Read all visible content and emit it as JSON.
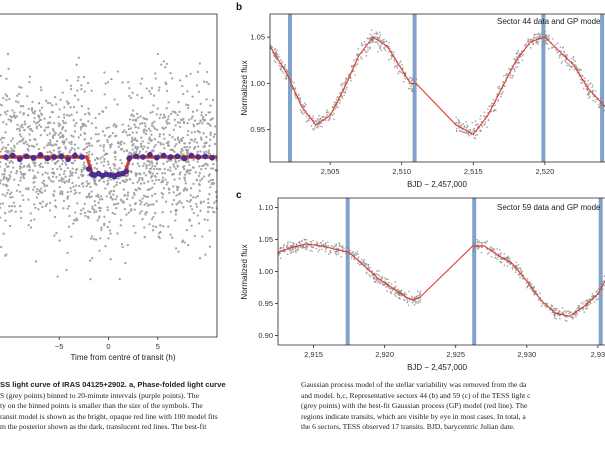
{
  "panel_a": {
    "xlabel": "Time from centre of transit (h)",
    "xticks": [
      "−5",
      "0",
      "5"
    ]
  },
  "panel_b": {
    "letter": "b",
    "title": "Sector 44 data and GP mode",
    "ylabel": "Normalized flux",
    "xlabel": "BJD − 2,457,000",
    "yticks": [
      "1.05",
      "1.00",
      "0.95"
    ],
    "xticks": [
      "2,505",
      "2,510",
      "2,515",
      "2,520"
    ]
  },
  "panel_c": {
    "letter": "c",
    "title": "Sector 59 data and GP mode",
    "ylabel": "Normalized flux",
    "xlabel": "BJD − 2,457,000",
    "yticks": [
      "1.10",
      "1.05",
      "1.00",
      "0.95",
      "0.90"
    ],
    "xticks": [
      "2,915",
      "2,920",
      "2,925",
      "2,930",
      "2,93"
    ]
  },
  "caption_left": [
    "SS light curve of IRAS 04125+2902. a, Phase-folded light curve",
    "S (grey points) binned to 20-minute intervals (purple points). The",
    "ty on the binned points is smaller than the size of the symbols. The",
    "ransit model is shown as the bright, opaque red line with 100 model fits",
    "m the posterior shown as the dark, translucent red lines. The best-fit"
  ],
  "caption_right": [
    "Gaussian process model of the stellar variability was removed from the da",
    "and model. b,c, Representative sectors 44 (b) and 59 (c) of the TESS light c",
    "(grey points) with the best-fit Gaussian process (GP) model (red line). The",
    "regions indicate transits, which are visible by eye in most cases. In total, a",
    "the 6 sectors, TESS observed 17 transits. BJD, barycentric Julian date."
  ],
  "chart_data": [
    {
      "type": "scatter",
      "panel": "a",
      "xlabel": "Time from centre of transit (h)",
      "xlim": [
        -11,
        11
      ],
      "xticks": [
        -5,
        0,
        5
      ],
      "series": [
        {
          "name": "",
          "color": "#9a9a9a"
        },
        {
          "name": "",
          "color": "#4a2f9a",
          "x": [
            -10.4,
            -9.7,
            -9.0,
            -8.3,
            -7.6,
            -6.9,
            -6.2,
            -5.5,
            -4.8,
            -4.1,
            -3.4,
            -2.7,
            -2.0,
            -1.7,
            -1.4,
            -1.0,
            -0.6,
            -0.2,
            0.2,
            0.6,
            1.0,
            1.4,
            1.8,
            2.1,
            2.8,
            3.5,
            4.2,
            4.9,
            5.6,
            6.3,
            7.0,
            7.7,
            8.4,
            9.1,
            9.8,
            10.5
          ],
          "y": [
            0.0,
            0.2,
            -0.3,
            0.1,
            -0.1,
            0.3,
            -0.2,
            0.0,
            0.1,
            -0.3,
            0.2,
            0.0,
            -1.6,
            -2.3,
            -2.4,
            -2.2,
            -2.5,
            -2.3,
            -2.4,
            -2.6,
            -2.3,
            -2.2,
            -1.9,
            -0.2,
            0.1,
            0.0,
            0.3,
            -0.1,
            0.2,
            0.0,
            0.1,
            -0.2,
            0.2,
            0.0,
            0.1,
            -0.1
          ]
        },
        {
          "name": "",
          "color": "#d83a2a",
          "x": [
            -11,
            -2.2,
            -1.6,
            1.6,
            2.2,
            11
          ],
          "y": [
            0,
            0,
            -2.35,
            -2.35,
            0,
            0
          ]
        }
      ]
    },
    {
      "type": "scatter",
      "panel": "b",
      "title": "Sector 44 data and GP mode",
      "xlabel": "BJD − 2,457,000",
      "ylabel": "Normalized flux",
      "xlim": [
        2500.8,
        2524.2
      ],
      "ylim": [
        0.915,
        1.075
      ],
      "transits": [
        2502.2,
        2510.9,
        2519.9,
        2524.0
      ],
      "gp_model": {
        "x": [
          2500.8,
          2502.0,
          2503.0,
          2504.0,
          2505.0,
          2506.0,
          2507.0,
          2508.0,
          2509.0,
          2510.0,
          2510.6,
          2511.0,
          2513.8,
          2515.0,
          2516.0,
          2517.0,
          2518.0,
          2519.0,
          2520.0,
          2521.0,
          2522.0,
          2523.0,
          2524.2
        ],
        "y": [
          1.04,
          1.01,
          0.975,
          0.955,
          0.965,
          0.995,
          1.03,
          1.05,
          1.04,
          1.015,
          1.0,
          1.0,
          0.955,
          0.945,
          0.965,
          0.995,
          1.025,
          1.045,
          1.05,
          1.035,
          1.02,
          0.995,
          0.975
        ]
      }
    },
    {
      "type": "scatter",
      "panel": "c",
      "title": "Sector 59 data and GP mode",
      "xlabel": "BJD − 2,457,000",
      "ylabel": "Normalized flux",
      "xlim": [
        2912.5,
        2935.5
      ],
      "ylim": [
        0.885,
        1.115
      ],
      "transits": [
        2917.4,
        2926.3,
        2935.2
      ],
      "gp_model": {
        "x": [
          2912.5,
          2913.5,
          2914.5,
          2915.5,
          2916.5,
          2917.5,
          2918.5,
          2919.5,
          2920.5,
          2921.5,
          2922.0,
          2922.5,
          2926.2,
          2927.0,
          2928.0,
          2929.0,
          2930.0,
          2931.0,
          2932.0,
          2933.0,
          2934.0,
          2935.0,
          2935.5
        ],
        "y": [
          1.03,
          1.038,
          1.043,
          1.04,
          1.035,
          1.03,
          1.01,
          0.99,
          0.975,
          0.96,
          0.955,
          0.96,
          1.04,
          1.04,
          1.025,
          1.012,
          0.985,
          0.955,
          0.935,
          0.93,
          0.945,
          0.965,
          0.985
        ]
      }
    }
  ]
}
